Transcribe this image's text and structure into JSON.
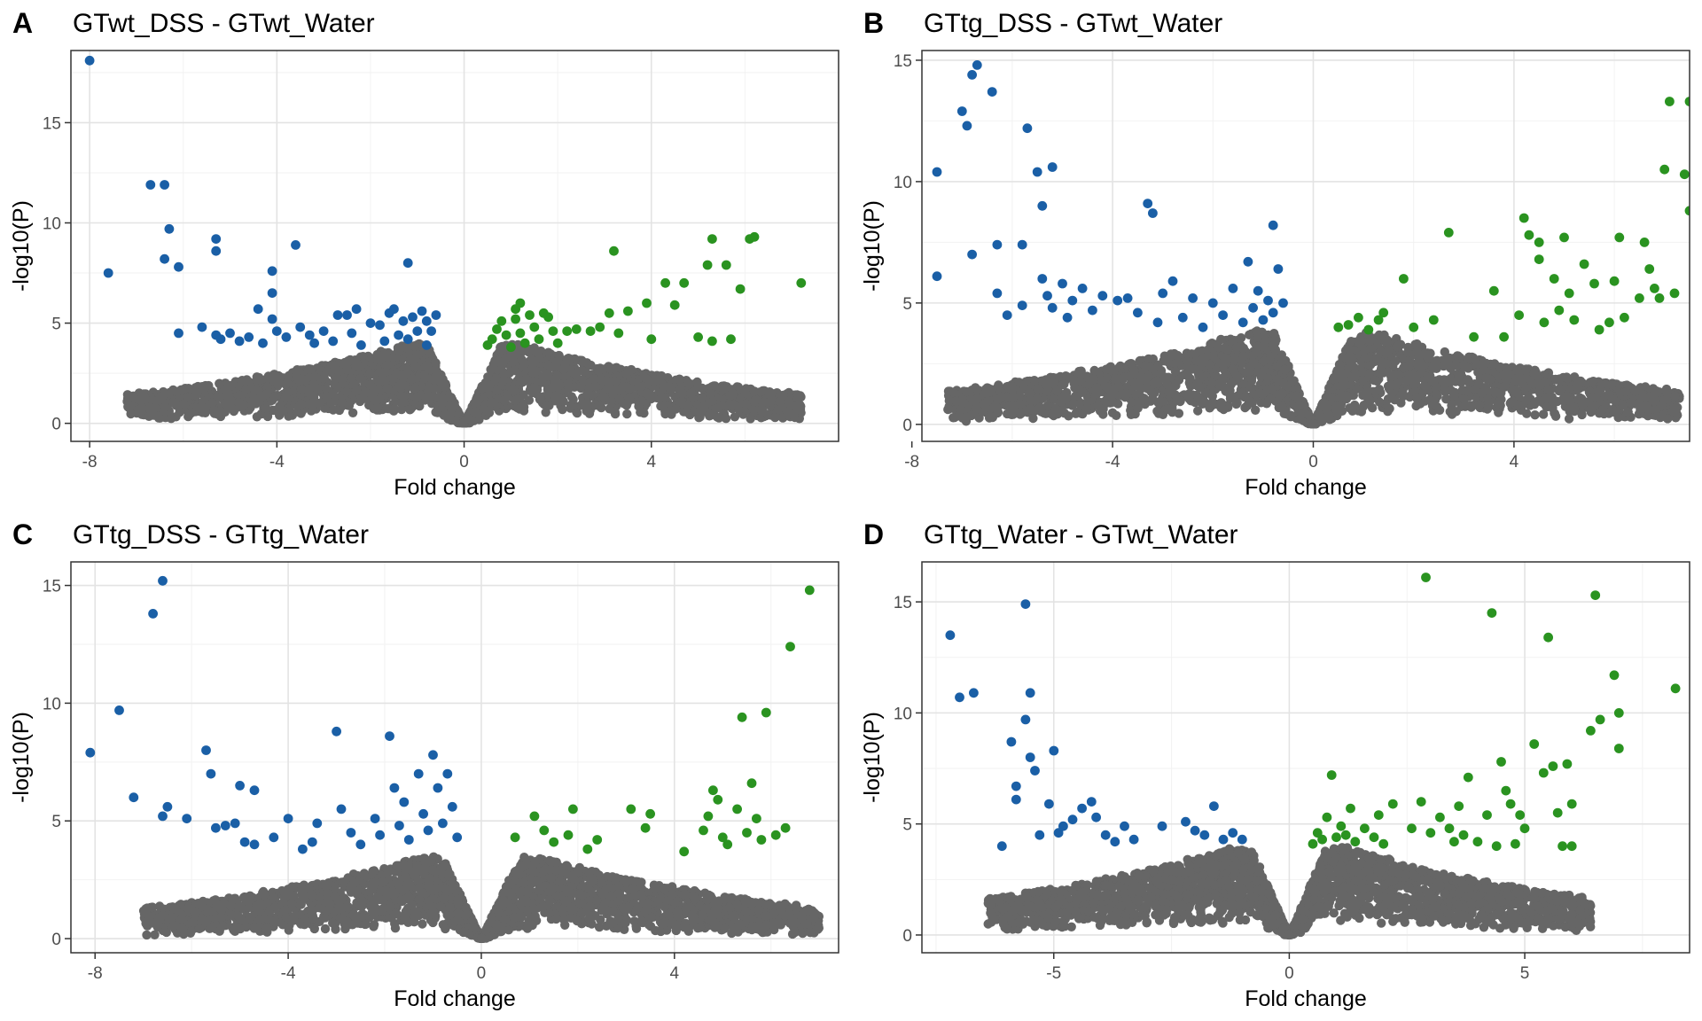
{
  "colors": {
    "down": "#1a5fa6",
    "up": "#2a9320",
    "ns": "#666666"
  },
  "chart_data": [
    {
      "type": "scatter",
      "panel_label": "A",
      "title": "GTwt_DSS - GTwt_Water",
      "xlabel": "Fold change",
      "ylabel": "-log10(P)",
      "xlim": [
        -8.4,
        8.0
      ],
      "ylim": [
        -0.9,
        18.6
      ],
      "xticks": [
        -8,
        -4,
        0,
        4
      ],
      "yticks": [
        0,
        5,
        10,
        15
      ],
      "grid": true,
      "significant_down": [
        [
          -8.0,
          18.1
        ],
        [
          -7.6,
          7.5
        ],
        [
          -6.7,
          11.9
        ],
        [
          -6.4,
          11.9
        ],
        [
          -6.3,
          9.7
        ],
        [
          -6.4,
          8.2
        ],
        [
          -6.1,
          7.8
        ],
        [
          -6.1,
          4.5
        ],
        [
          -5.6,
          4.8
        ],
        [
          -5.3,
          9.2
        ],
        [
          -5.3,
          8.6
        ],
        [
          -5.3,
          4.4
        ],
        [
          -5.2,
          4.2
        ],
        [
          -5.0,
          4.5
        ],
        [
          -4.8,
          4.1
        ],
        [
          -4.6,
          4.3
        ],
        [
          -4.4,
          5.7
        ],
        [
          -4.3,
          4.0
        ],
        [
          -4.1,
          7.6
        ],
        [
          -4.1,
          6.5
        ],
        [
          -4.1,
          5.2
        ],
        [
          -4.0,
          4.6
        ],
        [
          -3.8,
          4.3
        ],
        [
          -3.6,
          8.9
        ],
        [
          -3.5,
          4.8
        ],
        [
          -3.3,
          4.4
        ],
        [
          -3.2,
          4.0
        ],
        [
          -3.0,
          4.6
        ],
        [
          -2.8,
          4.1
        ],
        [
          -2.7,
          5.4
        ],
        [
          -2.5,
          5.4
        ],
        [
          -2.4,
          4.5
        ],
        [
          -2.3,
          5.7
        ],
        [
          -2.2,
          3.9
        ],
        [
          -2.0,
          5.0
        ],
        [
          -1.8,
          4.9
        ],
        [
          -1.7,
          4.1
        ],
        [
          -1.6,
          5.5
        ],
        [
          -1.5,
          5.7
        ],
        [
          -1.4,
          4.4
        ],
        [
          -1.3,
          5.1
        ],
        [
          -1.2,
          8.0
        ],
        [
          -1.2,
          4.2
        ],
        [
          -1.1,
          5.3
        ],
        [
          -1.0,
          4.6
        ],
        [
          -0.9,
          5.6
        ],
        [
          -0.8,
          5.1
        ],
        [
          -0.8,
          3.9
        ],
        [
          -0.7,
          4.6
        ],
        [
          -0.6,
          5.4
        ]
      ],
      "significant_up": [
        [
          0.5,
          3.9
        ],
        [
          0.6,
          4.2
        ],
        [
          0.7,
          4.7
        ],
        [
          0.8,
          5.1
        ],
        [
          0.9,
          4.4
        ],
        [
          1.0,
          3.8
        ],
        [
          1.1,
          5.7
        ],
        [
          1.1,
          5.2
        ],
        [
          1.2,
          6.0
        ],
        [
          1.2,
          4.5
        ],
        [
          1.3,
          4.0
        ],
        [
          1.4,
          5.4
        ],
        [
          1.5,
          4.8
        ],
        [
          1.6,
          4.2
        ],
        [
          1.7,
          5.5
        ],
        [
          1.8,
          5.3
        ],
        [
          1.9,
          4.6
        ],
        [
          2.0,
          4.0
        ],
        [
          2.2,
          4.6
        ],
        [
          2.4,
          4.7
        ],
        [
          2.7,
          4.6
        ],
        [
          2.9,
          4.8
        ],
        [
          3.1,
          5.5
        ],
        [
          3.2,
          8.6
        ],
        [
          3.3,
          4.5
        ],
        [
          3.5,
          5.6
        ],
        [
          3.9,
          6.0
        ],
        [
          4.0,
          4.2
        ],
        [
          4.3,
          7.0
        ],
        [
          4.5,
          5.9
        ],
        [
          4.7,
          7.0
        ],
        [
          5.0,
          4.3
        ],
        [
          5.2,
          7.9
        ],
        [
          5.3,
          9.2
        ],
        [
          5.3,
          4.1
        ],
        [
          5.6,
          7.9
        ],
        [
          5.7,
          4.2
        ],
        [
          5.9,
          6.7
        ],
        [
          6.1,
          9.2
        ],
        [
          6.2,
          9.3
        ],
        [
          7.2,
          7.0
        ]
      ],
      "nonsignificant_envelope": {
        "max_abs_x": 7.2,
        "max_y_near_center": 4.0,
        "note_shape": "volcano"
      }
    },
    {
      "type": "scatter",
      "panel_label": "B",
      "title": "GTtg_DSS - GTwt_Water",
      "xlabel": "Fold change",
      "ylabel": "-log10(P)",
      "xlim": [
        -7.8,
        7.5
      ],
      "ylim": [
        -0.7,
        15.4
      ],
      "xticks": [
        -8,
        -4,
        0,
        4
      ],
      "yticks": [
        0,
        5,
        10,
        15
      ],
      "grid": true,
      "significant_down": [
        [
          -7.5,
          10.4
        ],
        [
          -7.5,
          6.1
        ],
        [
          -7.0,
          12.9
        ],
        [
          -6.9,
          12.3
        ],
        [
          -6.8,
          14.4
        ],
        [
          -6.7,
          14.8
        ],
        [
          -6.8,
          7.0
        ],
        [
          -6.4,
          13.7
        ],
        [
          -6.3,
          7.4
        ],
        [
          -6.3,
          5.4
        ],
        [
          -6.1,
          4.5
        ],
        [
          -5.8,
          7.4
        ],
        [
          -5.8,
          4.9
        ],
        [
          -5.7,
          12.2
        ],
        [
          -5.5,
          10.4
        ],
        [
          -5.4,
          9.0
        ],
        [
          -5.4,
          6.0
        ],
        [
          -5.3,
          5.3
        ],
        [
          -5.2,
          10.6
        ],
        [
          -5.2,
          4.8
        ],
        [
          -5.0,
          5.8
        ],
        [
          -4.9,
          4.4
        ],
        [
          -4.8,
          5.1
        ],
        [
          -4.6,
          5.6
        ],
        [
          -4.4,
          4.7
        ],
        [
          -4.2,
          5.3
        ],
        [
          -3.9,
          5.1
        ],
        [
          -3.7,
          5.2
        ],
        [
          -3.5,
          4.6
        ],
        [
          -3.3,
          9.1
        ],
        [
          -3.2,
          8.7
        ],
        [
          -3.1,
          4.2
        ],
        [
          -3.0,
          5.4
        ],
        [
          -2.8,
          5.9
        ],
        [
          -2.6,
          4.4
        ],
        [
          -2.4,
          5.2
        ],
        [
          -2.2,
          4.0
        ],
        [
          -2.0,
          5.0
        ],
        [
          -1.8,
          4.5
        ],
        [
          -1.6,
          5.6
        ],
        [
          -1.4,
          4.2
        ],
        [
          -1.3,
          6.7
        ],
        [
          -1.2,
          4.8
        ],
        [
          -1.1,
          5.5
        ],
        [
          -1.0,
          4.3
        ],
        [
          -0.9,
          5.1
        ],
        [
          -0.8,
          8.2
        ],
        [
          -0.8,
          4.6
        ],
        [
          -0.7,
          6.4
        ],
        [
          -0.6,
          5.0
        ]
      ],
      "significant_up": [
        [
          0.5,
          4.0
        ],
        [
          0.7,
          4.1
        ],
        [
          0.9,
          4.4
        ],
        [
          1.1,
          3.9
        ],
        [
          1.3,
          4.3
        ],
        [
          1.4,
          4.6
        ],
        [
          1.8,
          6.0
        ],
        [
          2.0,
          4.0
        ],
        [
          2.4,
          4.3
        ],
        [
          2.7,
          7.9
        ],
        [
          3.2,
          3.6
        ],
        [
          3.6,
          5.5
        ],
        [
          3.8,
          3.6
        ],
        [
          4.1,
          4.5
        ],
        [
          4.2,
          8.5
        ],
        [
          4.3,
          7.8
        ],
        [
          4.5,
          7.5
        ],
        [
          4.5,
          6.8
        ],
        [
          4.6,
          4.2
        ],
        [
          4.8,
          6.0
        ],
        [
          4.9,
          4.7
        ],
        [
          5.0,
          7.7
        ],
        [
          5.1,
          5.4
        ],
        [
          5.2,
          4.3
        ],
        [
          5.4,
          6.6
        ],
        [
          5.6,
          5.8
        ],
        [
          5.7,
          3.9
        ],
        [
          5.9,
          4.2
        ],
        [
          6.0,
          5.9
        ],
        [
          6.1,
          7.7
        ],
        [
          6.2,
          4.4
        ],
        [
          6.5,
          5.2
        ],
        [
          6.6,
          7.5
        ],
        [
          6.7,
          6.4
        ],
        [
          6.8,
          5.6
        ],
        [
          6.9,
          5.2
        ],
        [
          7.0,
          10.5
        ],
        [
          7.1,
          13.3
        ],
        [
          7.2,
          5.4
        ],
        [
          7.4,
          10.3
        ],
        [
          7.5,
          8.8
        ],
        [
          7.5,
          13.3
        ]
      ],
      "nonsignificant_envelope": {
        "max_abs_x": 7.3,
        "max_y_near_center": 3.9,
        "note_shape": "volcano"
      }
    },
    {
      "type": "scatter",
      "panel_label": "C",
      "title": "GTtg_DSS - GTtg_Water",
      "xlabel": "Fold change",
      "ylabel": "-log10(P)",
      "xlim": [
        -8.5,
        7.4
      ],
      "ylim": [
        -0.6,
        16.0
      ],
      "xticks": [
        -8,
        -4,
        0,
        4
      ],
      "yticks": [
        0,
        5,
        10,
        15
      ],
      "grid": true,
      "significant_down": [
        [
          -8.1,
          7.9
        ],
        [
          -7.5,
          9.7
        ],
        [
          -7.2,
          6.0
        ],
        [
          -6.8,
          13.8
        ],
        [
          -6.6,
          15.2
        ],
        [
          -6.6,
          5.2
        ],
        [
          -6.5,
          5.6
        ],
        [
          -6.1,
          5.1
        ],
        [
          -5.7,
          8.0
        ],
        [
          -5.6,
          7.0
        ],
        [
          -5.5,
          4.7
        ],
        [
          -5.3,
          4.8
        ],
        [
          -5.1,
          4.9
        ],
        [
          -5.0,
          6.5
        ],
        [
          -4.9,
          4.1
        ],
        [
          -4.7,
          6.3
        ],
        [
          -4.7,
          4.0
        ],
        [
          -4.3,
          4.3
        ],
        [
          -4.0,
          5.1
        ],
        [
          -3.7,
          3.8
        ],
        [
          -3.5,
          4.1
        ],
        [
          -3.4,
          4.9
        ],
        [
          -3.0,
          8.8
        ],
        [
          -2.9,
          5.5
        ],
        [
          -2.7,
          4.5
        ],
        [
          -2.5,
          4.0
        ],
        [
          -2.2,
          5.1
        ],
        [
          -2.1,
          4.4
        ],
        [
          -1.9,
          8.6
        ],
        [
          -1.8,
          6.4
        ],
        [
          -1.7,
          4.8
        ],
        [
          -1.6,
          5.8
        ],
        [
          -1.5,
          4.2
        ],
        [
          -1.3,
          7.0
        ],
        [
          -1.2,
          5.3
        ],
        [
          -1.1,
          4.6
        ],
        [
          -1.0,
          7.8
        ],
        [
          -0.9,
          6.4
        ],
        [
          -0.8,
          4.9
        ],
        [
          -0.7,
          7.0
        ],
        [
          -0.6,
          5.6
        ],
        [
          -0.5,
          4.3
        ]
      ],
      "significant_up": [
        [
          0.7,
          4.3
        ],
        [
          1.1,
          5.2
        ],
        [
          1.3,
          4.6
        ],
        [
          1.5,
          4.1
        ],
        [
          1.8,
          4.4
        ],
        [
          1.9,
          5.5
        ],
        [
          2.2,
          3.8
        ],
        [
          2.4,
          4.2
        ],
        [
          3.1,
          5.5
        ],
        [
          3.4,
          4.7
        ],
        [
          3.5,
          5.3
        ],
        [
          4.2,
          3.7
        ],
        [
          4.6,
          4.6
        ],
        [
          4.7,
          5.2
        ],
        [
          4.8,
          6.3
        ],
        [
          4.9,
          5.9
        ],
        [
          5.0,
          4.3
        ],
        [
          5.1,
          4.0
        ],
        [
          5.3,
          5.5
        ],
        [
          5.4,
          9.4
        ],
        [
          5.5,
          4.5
        ],
        [
          5.6,
          6.6
        ],
        [
          5.7,
          5.1
        ],
        [
          5.8,
          4.2
        ],
        [
          5.9,
          9.6
        ],
        [
          6.1,
          4.4
        ],
        [
          6.3,
          4.7
        ],
        [
          6.4,
          12.4
        ],
        [
          6.8,
          14.8
        ]
      ],
      "nonsignificant_envelope": {
        "max_abs_x": 7.0,
        "max_y_near_center": 3.5,
        "note_shape": "volcano"
      }
    },
    {
      "type": "scatter",
      "panel_label": "D",
      "title": "GTtg_Water - GTwt_Water",
      "xlabel": "Fold change",
      "ylabel": "-log10(P)",
      "xlim": [
        -7.8,
        8.5
      ],
      "ylim": [
        -0.8,
        16.8
      ],
      "xticks": [
        -5,
        0,
        5
      ],
      "yticks": [
        0,
        5,
        10,
        15
      ],
      "grid": true,
      "significant_down": [
        [
          -7.2,
          13.5
        ],
        [
          -7.0,
          10.7
        ],
        [
          -6.7,
          10.9
        ],
        [
          -6.1,
          4.0
        ],
        [
          -5.9,
          8.7
        ],
        [
          -5.8,
          6.7
        ],
        [
          -5.8,
          6.1
        ],
        [
          -5.6,
          9.7
        ],
        [
          -5.6,
          14.9
        ],
        [
          -5.5,
          10.9
        ],
        [
          -5.5,
          8.0
        ],
        [
          -5.4,
          7.4
        ],
        [
          -5.3,
          4.5
        ],
        [
          -5.1,
          5.9
        ],
        [
          -5.0,
          8.3
        ],
        [
          -4.9,
          4.6
        ],
        [
          -4.8,
          4.9
        ],
        [
          -4.6,
          5.2
        ],
        [
          -4.4,
          5.7
        ],
        [
          -4.2,
          6.0
        ],
        [
          -4.1,
          5.3
        ],
        [
          -3.9,
          4.5
        ],
        [
          -3.7,
          4.2
        ],
        [
          -3.5,
          4.9
        ],
        [
          -3.3,
          4.3
        ],
        [
          -2.7,
          4.9
        ],
        [
          -2.2,
          5.1
        ],
        [
          -2.0,
          4.7
        ],
        [
          -1.8,
          4.5
        ],
        [
          -1.6,
          5.8
        ],
        [
          -1.4,
          4.3
        ],
        [
          -1.2,
          4.6
        ],
        [
          -1.0,
          4.3
        ]
      ],
      "significant_up": [
        [
          0.5,
          4.1
        ],
        [
          0.6,
          4.6
        ],
        [
          0.7,
          4.3
        ],
        [
          0.8,
          5.3
        ],
        [
          0.9,
          7.2
        ],
        [
          1.0,
          4.4
        ],
        [
          1.1,
          4.9
        ],
        [
          1.2,
          4.5
        ],
        [
          1.3,
          5.7
        ],
        [
          1.4,
          4.2
        ],
        [
          1.6,
          4.8
        ],
        [
          1.8,
          4.4
        ],
        [
          1.9,
          5.4
        ],
        [
          2.0,
          4.1
        ],
        [
          2.2,
          5.9
        ],
        [
          2.6,
          4.8
        ],
        [
          2.8,
          6.0
        ],
        [
          2.9,
          16.1
        ],
        [
          3.0,
          4.6
        ],
        [
          3.2,
          5.3
        ],
        [
          3.4,
          4.8
        ],
        [
          3.5,
          4.2
        ],
        [
          3.6,
          5.8
        ],
        [
          3.7,
          4.5
        ],
        [
          3.8,
          7.1
        ],
        [
          4.0,
          4.2
        ],
        [
          4.2,
          5.4
        ],
        [
          4.3,
          14.5
        ],
        [
          4.4,
          4.0
        ],
        [
          4.5,
          7.8
        ],
        [
          4.6,
          6.5
        ],
        [
          4.7,
          5.9
        ],
        [
          4.8,
          4.1
        ],
        [
          4.9,
          5.4
        ],
        [
          5.0,
          4.8
        ],
        [
          5.2,
          8.6
        ],
        [
          5.4,
          7.3
        ],
        [
          5.5,
          13.4
        ],
        [
          5.6,
          7.6
        ],
        [
          5.7,
          5.5
        ],
        [
          5.8,
          4.0
        ],
        [
          5.9,
          7.7
        ],
        [
          6.0,
          5.9
        ],
        [
          6.0,
          4.0
        ],
        [
          6.4,
          9.2
        ],
        [
          6.5,
          15.3
        ],
        [
          6.6,
          9.7
        ],
        [
          6.9,
          11.7
        ],
        [
          7.0,
          10.0
        ],
        [
          7.0,
          8.4
        ],
        [
          8.2,
          11.1
        ]
      ],
      "nonsignificant_envelope": {
        "max_abs_x": 6.4,
        "max_y_near_center": 4.0,
        "note_shape": "volcano"
      }
    }
  ]
}
